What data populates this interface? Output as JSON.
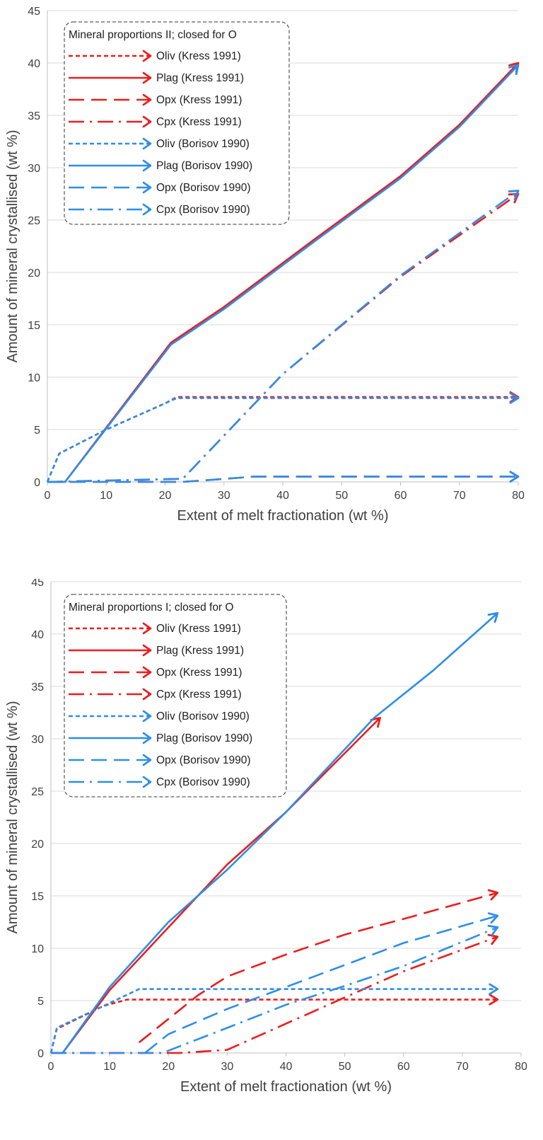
{
  "chart_data": [
    {
      "type": "line",
      "xlabel": "Extent of melt fractionation (wt %)",
      "ylabel": "Amount of mineral crystallised (wt %)",
      "xlim": [
        0,
        80
      ],
      "ylim": [
        0,
        45
      ],
      "xticks": [
        "0",
        "10",
        "20",
        "30",
        "40",
        "50",
        "60",
        "70",
        "80"
      ],
      "yticks": [
        "0",
        "5",
        "10",
        "15",
        "20",
        "25",
        "30",
        "35",
        "40",
        "45"
      ],
      "grid": "horizontal",
      "legend_position": "top-left",
      "legend_title": "Mineral proportions II; closed for O",
      "series": [
        {
          "name": "Oliv (Kress 1991)",
          "color": "#ee1c1c",
          "dash": "short-dash",
          "x": [
            0,
            2,
            10,
            20,
            22,
            80
          ],
          "y": [
            0,
            2.7,
            5,
            7.5,
            8.1,
            8.1
          ]
        },
        {
          "name": "Plag (Kress 1991)",
          "color": "#ee1c1c",
          "dash": "solid",
          "x": [
            0,
            3,
            21,
            30,
            45,
            60,
            70,
            80
          ],
          "y": [
            0,
            0,
            13.3,
            16.7,
            23.0,
            29.2,
            34.1,
            40.0
          ]
        },
        {
          "name": "Opx (Kress 1991)",
          "color": "#ee1c1c",
          "dash": "long-dash",
          "x": [
            0,
            23,
            28,
            35,
            80
          ],
          "y": [
            0,
            0,
            0.2,
            0.5,
            0.5
          ]
        },
        {
          "name": "Cpx (Kress 1991)",
          "color": "#ee1c1c",
          "dash": "dash-dot",
          "x": [
            0,
            23,
            40,
            60,
            80
          ],
          "y": [
            0,
            0.3,
            10.3,
            19.6,
            27.5
          ]
        },
        {
          "name": "Oliv (Borisov 1990)",
          "color": "#2e8ee8",
          "dash": "short-dash",
          "x": [
            0,
            2,
            10,
            20,
            22,
            80
          ],
          "y": [
            0,
            2.7,
            5,
            7.5,
            8.0,
            8.0
          ]
        },
        {
          "name": "Plag (Borisov 1990)",
          "color": "#2e8ee8",
          "dash": "solid",
          "x": [
            0,
            3,
            21,
            30,
            45,
            60,
            70,
            80
          ],
          "y": [
            0,
            0,
            13.1,
            16.5,
            22.8,
            29.0,
            33.9,
            39.8
          ]
        },
        {
          "name": "Opx (Borisov 1990)",
          "color": "#2e8ee8",
          "dash": "long-dash",
          "x": [
            0,
            23,
            28,
            35,
            80
          ],
          "y": [
            0,
            0,
            0.2,
            0.5,
            0.5
          ]
        },
        {
          "name": "Cpx (Borisov 1990)",
          "color": "#2e8ee8",
          "dash": "dash-dot",
          "x": [
            0,
            23,
            40,
            60,
            80
          ],
          "y": [
            0,
            0.3,
            10.3,
            19.7,
            27.8
          ]
        }
      ]
    },
    {
      "type": "line",
      "xlabel": "Extent of melt fractionation (wt %)",
      "ylabel": "Amount of mineral crystallised (wt %)",
      "xlim": [
        0,
        80
      ],
      "ylim": [
        0,
        45
      ],
      "xticks": [
        "0",
        "10",
        "20",
        "30",
        "40",
        "50",
        "60",
        "70",
        "80"
      ],
      "yticks": [
        "0",
        "5",
        "10",
        "15",
        "20",
        "25",
        "30",
        "35",
        "40",
        "45"
      ],
      "grid": "horizontal",
      "legend_position": "top-left",
      "legend_title": "Mineral proportions I; closed for O",
      "series": [
        {
          "name": "Oliv (Kress 1991)",
          "color": "#ee1c1c",
          "dash": "short-dash",
          "x": [
            0,
            1,
            9,
            13,
            76
          ],
          "y": [
            0,
            2.3,
            4.5,
            5.1,
            5.1
          ]
        },
        {
          "name": "Plag (Kress 1991)",
          "color": "#ee1c1c",
          "dash": "solid",
          "x": [
            0,
            2,
            10,
            20,
            30,
            40,
            56
          ],
          "y": [
            0,
            0,
            6.0,
            12.0,
            18.0,
            23.0,
            32.0
          ]
        },
        {
          "name": "Opx (Kress 1991)",
          "color": "#ee1c1c",
          "dash": "long-dash",
          "x": [
            15,
            25,
            30,
            40,
            50,
            60,
            76
          ],
          "y": [
            1.0,
            5.5,
            7.3,
            9.4,
            11.3,
            12.8,
            15.3
          ]
        },
        {
          "name": "Cpx (Kress 1991)",
          "color": "#ee1c1c",
          "dash": "dash-dot",
          "x": [
            0,
            22,
            30,
            40,
            50,
            60,
            76
          ],
          "y": [
            0,
            0,
            0.3,
            2.8,
            5.3,
            7.8,
            11.1
          ]
        },
        {
          "name": "Oliv (Borisov 1990)",
          "color": "#2e8ee8",
          "dash": "short-dash",
          "x": [
            0,
            1,
            9,
            15,
            76
          ],
          "y": [
            0,
            2.4,
            4.5,
            6.1,
            6.1
          ]
        },
        {
          "name": "Plag (Borisov 1990)",
          "color": "#2e8ee8",
          "dash": "solid",
          "x": [
            0,
            2,
            10,
            20,
            30,
            40,
            55,
            65,
            76
          ],
          "y": [
            0,
            0,
            6.3,
            12.5,
            17.5,
            23.0,
            32.0,
            36.5,
            42.0
          ]
        },
        {
          "name": "Opx (Borisov 1990)",
          "color": "#2e8ee8",
          "dash": "long-dash",
          "x": [
            16,
            20,
            30,
            40,
            50,
            60,
            76
          ],
          "y": [
            0,
            1.8,
            4.2,
            6.3,
            8.4,
            10.5,
            13.1
          ]
        },
        {
          "name": "Cpx (Borisov 1990)",
          "color": "#2e8ee8",
          "dash": "dash-dot",
          "x": [
            0,
            19,
            30,
            40,
            50,
            60,
            76
          ],
          "y": [
            0,
            0,
            2.4,
            4.6,
            6.4,
            8.3,
            12.0
          ]
        }
      ]
    }
  ]
}
